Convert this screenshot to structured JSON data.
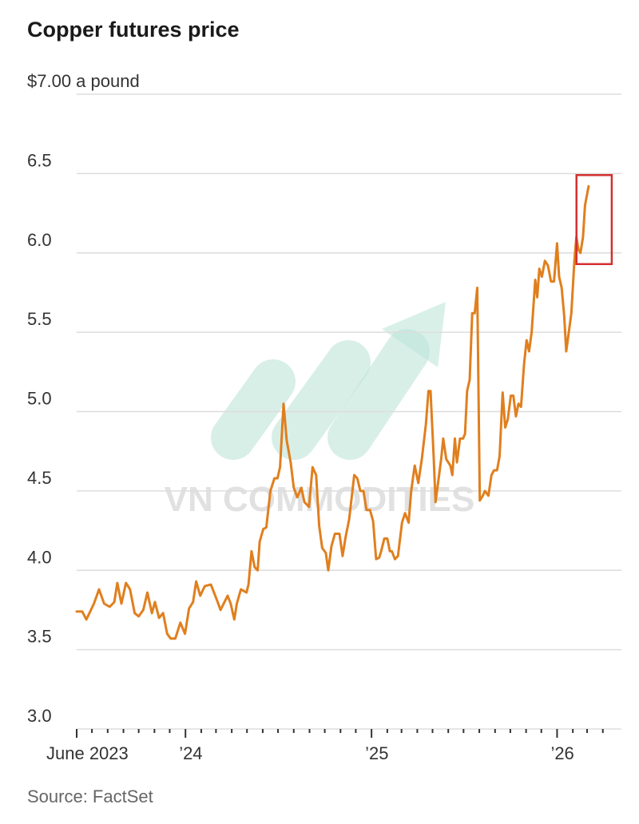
{
  "title": "Copper futures price",
  "source": "Source: FactSet",
  "watermark": "VN COMMODITIES",
  "colors": {
    "line": "#e07f1e",
    "grid": "#dddddd",
    "highlight": "#d32f2f",
    "watermark_shape": "#b9e3d7"
  },
  "chart_data": {
    "type": "line",
    "title": "Copper futures price",
    "ylabel": "$7.00 a pound",
    "ylim": [
      3.0,
      7.0
    ],
    "yticks": [
      {
        "value": 7.0,
        "label": "$7.00 a pound"
      },
      {
        "value": 6.5,
        "label": "6.5"
      },
      {
        "value": 6.0,
        "label": "6.0"
      },
      {
        "value": 5.5,
        "label": "5.5"
      },
      {
        "value": 5.0,
        "label": "5.0"
      },
      {
        "value": 4.5,
        "label": "4.5"
      },
      {
        "value": 4.0,
        "label": "4.0"
      },
      {
        "value": 3.5,
        "label": "3.5"
      },
      {
        "value": 3.0,
        "label": "3.0"
      }
    ],
    "xlim": [
      "2023-06-01",
      "2026-04-25"
    ],
    "xticks": [
      {
        "date": "2023-06-01",
        "label": "June 2023"
      },
      {
        "date": "2024-01-01",
        "label": "’24"
      },
      {
        "date": "2025-01-01",
        "label": "’25"
      },
      {
        "date": "2026-01-01",
        "label": "’26"
      }
    ],
    "minor_ticks": [
      "2023-07-01",
      "2023-08-01",
      "2023-09-01",
      "2023-10-01",
      "2023-11-01",
      "2023-12-01",
      "2024-02-01",
      "2024-03-01",
      "2024-04-01",
      "2024-05-01",
      "2024-06-01",
      "2024-07-01",
      "2024-08-01",
      "2024-09-01",
      "2024-10-01",
      "2024-11-01",
      "2024-12-01",
      "2025-02-01",
      "2025-03-01",
      "2025-04-01",
      "2025-05-01",
      "2025-06-01",
      "2025-07-01",
      "2025-08-01",
      "2025-09-01",
      "2025-10-01",
      "2025-11-01",
      "2025-12-01",
      "2026-02-01",
      "2026-03-01",
      "2026-04-01"
    ],
    "grid": true,
    "series": [
      {
        "points": [
          [
            "2023-06-01",
            3.74
          ],
          [
            "2023-06-12",
            3.74
          ],
          [
            "2023-06-20",
            3.69
          ],
          [
            "2023-07-05",
            3.79
          ],
          [
            "2023-07-15",
            3.88
          ],
          [
            "2023-07-25",
            3.79
          ],
          [
            "2023-08-05",
            3.77
          ],
          [
            "2023-08-14",
            3.8
          ],
          [
            "2023-08-20",
            3.92
          ],
          [
            "2023-08-28",
            3.79
          ],
          [
            "2023-09-06",
            3.92
          ],
          [
            "2023-09-14",
            3.88
          ],
          [
            "2023-09-23",
            3.73
          ],
          [
            "2023-10-01",
            3.71
          ],
          [
            "2023-10-10",
            3.75
          ],
          [
            "2023-10-18",
            3.86
          ],
          [
            "2023-10-27",
            3.73
          ],
          [
            "2023-11-02",
            3.8
          ],
          [
            "2023-11-10",
            3.7
          ],
          [
            "2023-11-18",
            3.73
          ],
          [
            "2023-11-26",
            3.6
          ],
          [
            "2023-12-03",
            3.57
          ],
          [
            "2023-12-12",
            3.57
          ],
          [
            "2023-12-22",
            3.67
          ],
          [
            "2023-12-31",
            3.6
          ],
          [
            "2024-01-08",
            3.76
          ],
          [
            "2024-01-16",
            3.8
          ],
          [
            "2024-01-22",
            3.93
          ],
          [
            "2024-01-30",
            3.84
          ],
          [
            "2024-02-08",
            3.9
          ],
          [
            "2024-02-20",
            3.91
          ],
          [
            "2024-03-02",
            3.82
          ],
          [
            "2024-03-10",
            3.75
          ],
          [
            "2024-03-24",
            3.84
          ],
          [
            "2024-03-30",
            3.79
          ],
          [
            "2024-04-06",
            3.69
          ],
          [
            "2024-04-11",
            3.79
          ],
          [
            "2024-04-19",
            3.88
          ],
          [
            "2024-04-30",
            3.86
          ],
          [
            "2024-05-04",
            3.91
          ],
          [
            "2024-05-10",
            4.12
          ],
          [
            "2024-05-16",
            4.02
          ],
          [
            "2024-05-22",
            4.0
          ],
          [
            "2024-05-26",
            4.18
          ],
          [
            "2024-06-02",
            4.26
          ],
          [
            "2024-06-08",
            4.27
          ],
          [
            "2024-06-16",
            4.5
          ],
          [
            "2024-06-24",
            4.58
          ],
          [
            "2024-06-30",
            4.58
          ],
          [
            "2024-07-05",
            4.65
          ],
          [
            "2024-07-12",
            5.05
          ],
          [
            "2024-07-18",
            4.82
          ],
          [
            "2024-07-26",
            4.68
          ],
          [
            "2024-08-01",
            4.52
          ],
          [
            "2024-08-08",
            4.46
          ],
          [
            "2024-08-16",
            4.52
          ],
          [
            "2024-08-22",
            4.43
          ],
          [
            "2024-08-31",
            4.4
          ],
          [
            "2024-09-07",
            4.65
          ],
          [
            "2024-09-14",
            4.6
          ],
          [
            "2024-09-20",
            4.28
          ],
          [
            "2024-09-26",
            4.14
          ],
          [
            "2024-10-03",
            4.11
          ],
          [
            "2024-10-08",
            4.0
          ],
          [
            "2024-10-14",
            4.15
          ],
          [
            "2024-10-21",
            4.23
          ],
          [
            "2024-10-30",
            4.23
          ],
          [
            "2024-11-05",
            4.09
          ],
          [
            "2024-11-11",
            4.21
          ],
          [
            "2024-11-18",
            4.32
          ],
          [
            "2024-11-28",
            4.6
          ],
          [
            "2024-12-04",
            4.58
          ],
          [
            "2024-12-10",
            4.5
          ],
          [
            "2024-12-16",
            4.5
          ],
          [
            "2024-12-22",
            4.38
          ],
          [
            "2024-12-29",
            4.38
          ],
          [
            "2025-01-04",
            4.31
          ],
          [
            "2025-01-10",
            4.07
          ],
          [
            "2025-01-16",
            4.08
          ],
          [
            "2025-01-20",
            4.12
          ],
          [
            "2025-01-26",
            4.2
          ],
          [
            "2025-02-01",
            4.2
          ],
          [
            "2025-02-06",
            4.12
          ],
          [
            "2025-02-10",
            4.12
          ],
          [
            "2025-02-16",
            4.07
          ],
          [
            "2025-02-22",
            4.09
          ],
          [
            "2025-03-02",
            4.3
          ],
          [
            "2025-03-08",
            4.36
          ],
          [
            "2025-03-15",
            4.3
          ],
          [
            "2025-03-20",
            4.5
          ],
          [
            "2025-03-27",
            4.66
          ],
          [
            "2025-04-03",
            4.55
          ],
          [
            "2025-04-10",
            4.7
          ],
          [
            "2025-04-18",
            4.92
          ],
          [
            "2025-04-23",
            5.13
          ],
          [
            "2025-04-27",
            5.13
          ],
          [
            "2025-05-03",
            4.73
          ],
          [
            "2025-05-07",
            4.43
          ],
          [
            "2025-05-13",
            4.58
          ],
          [
            "2025-05-18",
            4.7
          ],
          [
            "2025-05-22",
            4.83
          ],
          [
            "2025-05-28",
            4.7
          ],
          [
            "2025-06-05",
            4.66
          ],
          [
            "2025-06-09",
            4.6
          ],
          [
            "2025-06-14",
            4.83
          ],
          [
            "2025-06-18",
            4.68
          ],
          [
            "2025-06-24",
            4.83
          ],
          [
            "2025-06-30",
            4.83
          ],
          [
            "2025-07-04",
            4.86
          ],
          [
            "2025-07-08",
            5.13
          ],
          [
            "2025-07-13",
            5.2
          ],
          [
            "2025-07-18",
            5.62
          ],
          [
            "2025-07-23",
            5.62
          ],
          [
            "2025-07-28",
            5.78
          ],
          [
            "2025-08-02",
            4.44
          ],
          [
            "2025-08-08",
            4.47
          ],
          [
            "2025-08-12",
            4.5
          ],
          [
            "2025-08-19",
            4.47
          ],
          [
            "2025-08-25",
            4.6
          ],
          [
            "2025-08-30",
            4.63
          ],
          [
            "2025-09-05",
            4.63
          ],
          [
            "2025-09-10",
            4.72
          ],
          [
            "2025-09-16",
            5.12
          ],
          [
            "2025-09-21",
            4.9
          ],
          [
            "2025-09-26",
            4.95
          ],
          [
            "2025-10-02",
            5.1
          ],
          [
            "2025-10-07",
            5.1
          ],
          [
            "2025-10-12",
            4.97
          ],
          [
            "2025-10-17",
            5.05
          ],
          [
            "2025-10-22",
            5.03
          ],
          [
            "2025-10-28",
            5.3
          ],
          [
            "2025-11-02",
            5.45
          ],
          [
            "2025-11-07",
            5.38
          ],
          [
            "2025-11-12",
            5.5
          ],
          [
            "2025-11-19",
            5.83
          ],
          [
            "2025-11-23",
            5.72
          ],
          [
            "2025-11-27",
            5.9
          ],
          [
            "2025-12-02",
            5.85
          ],
          [
            "2025-12-08",
            5.95
          ],
          [
            "2025-12-14",
            5.92
          ],
          [
            "2025-12-20",
            5.82
          ],
          [
            "2025-12-26",
            5.82
          ],
          [
            "2026-01-01",
            6.06
          ],
          [
            "2026-01-05",
            5.85
          ],
          [
            "2026-01-10",
            5.78
          ],
          [
            "2026-01-15",
            5.6
          ],
          [
            "2026-01-19",
            5.38
          ],
          [
            "2026-01-24",
            5.5
          ],
          [
            "2026-01-29",
            5.62
          ],
          [
            "2026-02-04",
            5.95
          ],
          [
            "2026-02-08",
            6.1
          ],
          [
            "2026-02-12",
            6.02
          ],
          [
            "2026-02-16",
            6.0
          ],
          [
            "2026-02-21",
            6.1
          ],
          [
            "2026-02-25",
            6.3
          ],
          [
            "2026-03-04",
            6.42
          ]
        ]
      }
    ]
  }
}
